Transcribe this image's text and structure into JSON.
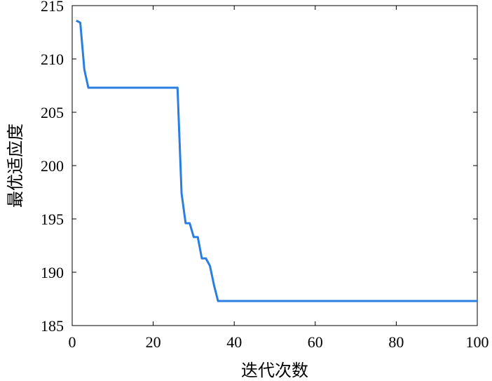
{
  "chart_data": {
    "type": "line",
    "title": "",
    "xlabel": "迭代次数",
    "ylabel": "最优适应度",
    "xlim": [
      0,
      100
    ],
    "ylim": [
      185,
      215
    ],
    "xticks": [
      0,
      20,
      40,
      60,
      80,
      100
    ],
    "yticks": [
      185,
      190,
      195,
      200,
      205,
      210,
      215
    ],
    "grid": false,
    "line_color": "#2a7de1",
    "series": [
      {
        "x": [
          1,
          2,
          3,
          4,
          5,
          26,
          27,
          28,
          29,
          30,
          31,
          32,
          33,
          34,
          35,
          36,
          100
        ],
        "y": [
          213.6,
          213.4,
          209.0,
          207.3,
          207.3,
          207.3,
          197.4,
          194.6,
          194.6,
          193.3,
          193.3,
          191.3,
          191.3,
          190.6,
          188.8,
          187.3,
          187.3
        ]
      }
    ]
  }
}
